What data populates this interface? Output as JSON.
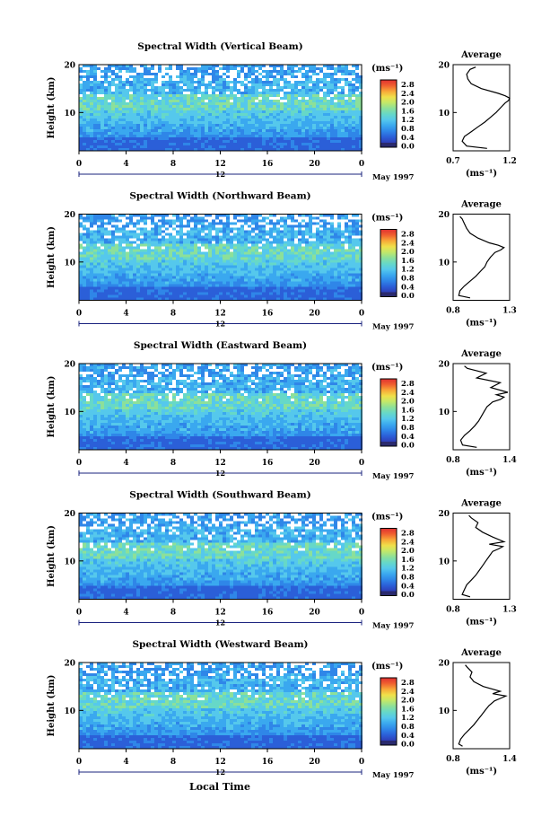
{
  "figure": {
    "xlabel": "Local Time",
    "height_label": "Height (km)",
    "date_label": "May 1997",
    "marker_label": "12",
    "units_label": "(ms⁻¹)",
    "avg_title": "Average",
    "avg_xlabel": "(ms⁻¹)"
  },
  "colors": {
    "scale": [
      "#2a2a6e",
      "#2f3fb8",
      "#2b5fd8",
      "#2f86e8",
      "#3aa8ef",
      "#55c8ec",
      "#66d8c8",
      "#8ce09a",
      "#c2e86a",
      "#f0e04a",
      "#f8a838",
      "#f06030",
      "#e03030"
    ],
    "axis": "#000000",
    "marker": "#1a237e"
  },
  "chart_data": [
    {
      "type": "heatmap",
      "title": "Spectral Width (Vertical Beam)",
      "x_ticks": [
        "0",
        "4",
        "8",
        "12",
        "16",
        "20",
        "0"
      ],
      "xlim": [
        0,
        24
      ],
      "y_ticks": [
        "20",
        "10"
      ],
      "ylim": [
        2,
        20
      ],
      "colorbar_ticks": [
        "2.8",
        "2.4",
        "2.0",
        "1.6",
        "1.2",
        "0.8",
        "0.4",
        "0.0"
      ],
      "profile": {
        "title": "Average",
        "x_ticks": [
          "0.7",
          "1.2"
        ],
        "xlim": [
          0.7,
          1.2
        ],
        "y_ticks": [
          "20",
          "10"
        ],
        "heights": [
          2.5,
          3,
          4,
          5,
          6,
          7,
          8,
          9,
          10,
          11,
          12,
          12.5,
          13,
          13.5,
          14,
          15,
          16,
          17,
          18,
          19,
          19.5
        ],
        "values": [
          1.0,
          0.82,
          0.78,
          0.8,
          0.86,
          0.92,
          0.98,
          1.03,
          1.08,
          1.12,
          1.16,
          1.19,
          1.2,
          1.16,
          1.1,
          0.95,
          0.86,
          0.83,
          0.82,
          0.85,
          0.9
        ]
      }
    },
    {
      "type": "heatmap",
      "title": "Spectral Width (Northward Beam)",
      "x_ticks": [
        "0",
        "4",
        "8",
        "12",
        "16",
        "20",
        "0"
      ],
      "xlim": [
        0,
        24
      ],
      "y_ticks": [
        "20",
        "10"
      ],
      "ylim": [
        2,
        20
      ],
      "colorbar_ticks": [
        "2.8",
        "2.4",
        "2.0",
        "1.6",
        "1.2",
        "0.8",
        "0.4",
        "0.0"
      ],
      "profile": {
        "title": "Average",
        "x_ticks": [
          "0.8",
          "1.3"
        ],
        "xlim": [
          0.8,
          1.3
        ],
        "y_ticks": [
          "20",
          "10"
        ],
        "heights": [
          2.5,
          3,
          4,
          5,
          6,
          7,
          8,
          9,
          10,
          11,
          12,
          12.5,
          13,
          13.5,
          14,
          15,
          16,
          17,
          18,
          19,
          19.5
        ],
        "values": [
          0.95,
          0.85,
          0.86,
          0.9,
          0.95,
          1.0,
          1.04,
          1.08,
          1.1,
          1.13,
          1.17,
          1.22,
          1.25,
          1.2,
          1.12,
          1.02,
          0.95,
          0.92,
          0.9,
          0.88,
          0.86
        ]
      }
    },
    {
      "type": "heatmap",
      "title": "Spectral Width (Eastward Beam)",
      "x_ticks": [
        "0",
        "4",
        "8",
        "12",
        "16",
        "20",
        "0"
      ],
      "xlim": [
        0,
        24
      ],
      "y_ticks": [
        "20",
        "10"
      ],
      "ylim": [
        2,
        20
      ],
      "colorbar_ticks": [
        "2.8",
        "2.4",
        "2.0",
        "1.6",
        "1.2",
        "0.8",
        "0.4",
        "0.0"
      ],
      "profile": {
        "title": "Average",
        "x_ticks": [
          "0.8",
          "1.4"
        ],
        "xlim": [
          0.8,
          1.4
        ],
        "y_ticks": [
          "20",
          "10"
        ],
        "heights": [
          2.5,
          3,
          4,
          5,
          6,
          7,
          8,
          9,
          10,
          11,
          12,
          12.5,
          13,
          13.5,
          14,
          15,
          16,
          17,
          18,
          19,
          19.5
        ],
        "values": [
          1.05,
          0.9,
          0.88,
          0.92,
          0.98,
          1.03,
          1.07,
          1.1,
          1.13,
          1.16,
          1.22,
          1.3,
          1.34,
          1.26,
          1.38,
          1.2,
          1.3,
          1.05,
          1.15,
          0.95,
          0.92
        ]
      }
    },
    {
      "type": "heatmap",
      "title": "Spectral Width (Southward Beam)",
      "x_ticks": [
        "0",
        "4",
        "8",
        "12",
        "16",
        "20",
        "0"
      ],
      "xlim": [
        0,
        24
      ],
      "y_ticks": [
        "20",
        "10"
      ],
      "ylim": [
        2,
        20
      ],
      "colorbar_ticks": [
        "2.8",
        "2.4",
        "2.0",
        "1.6",
        "1.2",
        "0.8",
        "0.4",
        "0.0"
      ],
      "profile": {
        "title": "Average",
        "x_ticks": [
          "0.8",
          "1.3"
        ],
        "xlim": [
          0.8,
          1.3
        ],
        "y_ticks": [
          "20",
          "10"
        ],
        "heights": [
          2.5,
          3,
          4,
          5,
          6,
          7,
          8,
          9,
          10,
          11,
          12,
          12.5,
          13,
          13.5,
          14,
          15,
          16,
          17,
          18,
          19,
          19.5
        ],
        "values": [
          0.95,
          0.88,
          0.9,
          0.92,
          0.96,
          1.0,
          1.03,
          1.06,
          1.09,
          1.12,
          1.15,
          1.2,
          1.24,
          1.12,
          1.25,
          1.15,
          1.06,
          1.0,
          1.02,
          0.96,
          0.94
        ]
      }
    },
    {
      "type": "heatmap",
      "title": "Spectral Width (Westward Beam)",
      "x_ticks": [
        "0",
        "4",
        "8",
        "12",
        "16",
        "20",
        "0"
      ],
      "xlim": [
        0,
        24
      ],
      "y_ticks": [
        "20",
        "10"
      ],
      "ylim": [
        2,
        20
      ],
      "colorbar_ticks": [
        "2.8",
        "2.4",
        "2.0",
        "1.6",
        "1.2",
        "0.8",
        "0.4",
        "0.0"
      ],
      "profile": {
        "title": "Average",
        "x_ticks": [
          "0.8",
          "1.4"
        ],
        "xlim": [
          0.8,
          1.4
        ],
        "y_ticks": [
          "20",
          "10"
        ],
        "heights": [
          2.5,
          3,
          4,
          5,
          6,
          7,
          8,
          9,
          10,
          11,
          12,
          12.5,
          13,
          13.5,
          14,
          15,
          16,
          17,
          18,
          19,
          19.5
        ],
        "values": [
          0.9,
          0.86,
          0.88,
          0.92,
          0.97,
          1.02,
          1.06,
          1.1,
          1.14,
          1.18,
          1.24,
          1.3,
          1.36,
          1.22,
          1.3,
          1.12,
          1.02,
          0.98,
          1.0,
          0.95,
          0.93
        ]
      }
    }
  ]
}
